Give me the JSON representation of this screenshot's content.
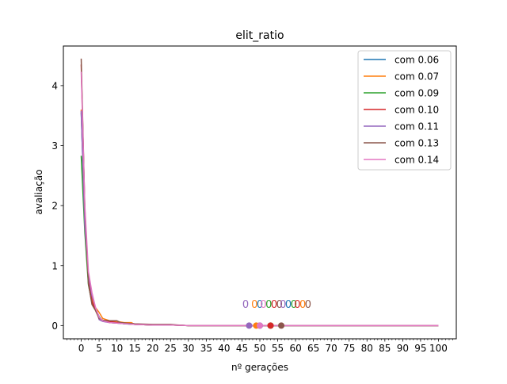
{
  "chart_data": {
    "type": "line",
    "title": "elit_ratio",
    "xlabel": "nº gerações",
    "ylabel": "avaliação",
    "xlim": [
      -5,
      105
    ],
    "ylim": [
      -0.22,
      4.66
    ],
    "xticks": [
      0,
      5,
      10,
      15,
      20,
      25,
      30,
      35,
      40,
      45,
      50,
      55,
      60,
      65,
      70,
      75,
      80,
      85,
      90,
      95,
      100
    ],
    "yticks": [
      0,
      1,
      2,
      3,
      4
    ],
    "legend_position": "upper right",
    "grid": false,
    "series": [
      {
        "name": "com 0.06",
        "color": "#1f77b4",
        "x": [
          0,
          1,
          2,
          3,
          4,
          5,
          6,
          8,
          10,
          12,
          15,
          20,
          25,
          30,
          40,
          50,
          60,
          70,
          80,
          90,
          100
        ],
        "y": [
          3.55,
          1.7,
          0.72,
          0.42,
          0.28,
          0.15,
          0.08,
          0.06,
          0.05,
          0.03,
          0.02,
          0.01,
          0.01,
          0.0,
          0.0,
          0.0,
          0.0,
          0.0,
          0.0,
          0.0,
          0.0
        ],
        "marker": {
          "x": 50,
          "y": 0.0,
          "label": "0"
        }
      },
      {
        "name": "com 0.07",
        "color": "#ff7f0e",
        "x": [
          0,
          1,
          2,
          3,
          4,
          5,
          6,
          8,
          10,
          12,
          14,
          15,
          20,
          25,
          30,
          40,
          50,
          60,
          70,
          80,
          90,
          100
        ],
        "y": [
          3.6,
          1.8,
          0.75,
          0.45,
          0.3,
          0.22,
          0.12,
          0.08,
          0.07,
          0.05,
          0.05,
          0.02,
          0.01,
          0.01,
          0.0,
          0.0,
          0.0,
          0.0,
          0.0,
          0.0,
          0.0,
          0.0
        ],
        "marker": {
          "x": 49,
          "y": 0.0,
          "label": "0"
        }
      },
      {
        "name": "com 0.09",
        "color": "#2ca02c",
        "x": [
          0,
          1,
          2,
          3,
          4,
          5,
          6,
          8,
          10,
          15,
          20,
          25,
          30,
          40,
          50,
          60,
          70,
          80,
          90,
          100
        ],
        "y": [
          2.83,
          1.55,
          0.68,
          0.38,
          0.26,
          0.14,
          0.08,
          0.05,
          0.04,
          0.02,
          0.01,
          0.01,
          0.0,
          0.0,
          0.0,
          0.0,
          0.0,
          0.0,
          0.0,
          0.0
        ],
        "marker": {
          "x": 53,
          "y": 0.0,
          "label": "0"
        }
      },
      {
        "name": "com 0.10",
        "color": "#d62728",
        "x": [
          0,
          1,
          2,
          3,
          4,
          5,
          6,
          8,
          10,
          15,
          20,
          25,
          30,
          40,
          50,
          60,
          70,
          80,
          90,
          100
        ],
        "y": [
          4.35,
          1.9,
          0.8,
          0.4,
          0.27,
          0.13,
          0.09,
          0.07,
          0.05,
          0.02,
          0.01,
          0.01,
          0.0,
          0.0,
          0.0,
          0.0,
          0.0,
          0.0,
          0.0,
          0.0
        ],
        "marker": {
          "x": 53,
          "y": 0.0,
          "label": "0"
        }
      },
      {
        "name": "com 0.11",
        "color": "#9467bd",
        "x": [
          0,
          1,
          2,
          3,
          4,
          5,
          6,
          8,
          10,
          15,
          20,
          25,
          30,
          40,
          50,
          60,
          70,
          80,
          90,
          100
        ],
        "y": [
          3.58,
          1.65,
          0.85,
          0.5,
          0.3,
          0.1,
          0.07,
          0.05,
          0.04,
          0.02,
          0.01,
          0.01,
          0.0,
          0.0,
          0.0,
          0.0,
          0.0,
          0.0,
          0.0,
          0.0
        ],
        "marker": {
          "x": 47,
          "y": 0.0,
          "label": "0"
        }
      },
      {
        "name": "com 0.13",
        "color": "#8c564b",
        "x": [
          0,
          1,
          2,
          3,
          4,
          5,
          6,
          8,
          10,
          11,
          15,
          20,
          25,
          27,
          30,
          40,
          50,
          60,
          70,
          80,
          90,
          100
        ],
        "y": [
          4.45,
          1.95,
          0.7,
          0.35,
          0.25,
          0.12,
          0.09,
          0.08,
          0.08,
          0.05,
          0.03,
          0.02,
          0.02,
          0.01,
          0.0,
          0.0,
          0.0,
          0.0,
          0.0,
          0.0,
          0.0,
          0.0
        ],
        "marker": {
          "x": 56,
          "y": 0.0,
          "label": "0"
        }
      },
      {
        "name": "com 0.14",
        "color": "#e377c2",
        "x": [
          0,
          1,
          2,
          3,
          4,
          5,
          6,
          8,
          10,
          15,
          20,
          25,
          30,
          40,
          50,
          60,
          70,
          80,
          90,
          100
        ],
        "y": [
          4.23,
          2.0,
          0.9,
          0.55,
          0.3,
          0.14,
          0.08,
          0.05,
          0.04,
          0.02,
          0.01,
          0.01,
          0.0,
          0.0,
          0.0,
          0.0,
          0.0,
          0.0,
          0.0,
          0.0
        ],
        "marker": {
          "x": 50,
          "y": 0.0,
          "label": "0"
        }
      }
    ],
    "annotations": [
      {
        "text": "0",
        "x": 46,
        "y": 0.36,
        "color": "#9467bd"
      },
      {
        "text": "0",
        "x": 48.5,
        "y": 0.36,
        "color": "#ff7f0e"
      },
      {
        "text": "0",
        "x": 50,
        "y": 0.36,
        "color": "#1f77b4"
      },
      {
        "text": "0",
        "x": 51,
        "y": 0.36,
        "color": "#e377c2"
      },
      {
        "text": "0",
        "x": 52.5,
        "y": 0.36,
        "color": "#2ca02c"
      },
      {
        "text": "0",
        "x": 54,
        "y": 0.36,
        "color": "#d62728"
      },
      {
        "text": "0",
        "x": 55.5,
        "y": 0.36,
        "color": "#8c564b"
      },
      {
        "text": "0",
        "x": 56.5,
        "y": 0.36,
        "color": "#9467bd"
      },
      {
        "text": "0",
        "x": 58,
        "y": 0.36,
        "color": "#1f77b4"
      },
      {
        "text": "0",
        "x": 59.5,
        "y": 0.36,
        "color": "#2ca02c"
      },
      {
        "text": "0",
        "x": 60.5,
        "y": 0.36,
        "color": "#d62728"
      },
      {
        "text": "0",
        "x": 62,
        "y": 0.36,
        "color": "#ff7f0e"
      },
      {
        "text": "0",
        "x": 63.5,
        "y": 0.36,
        "color": "#8c564b"
      }
    ]
  }
}
